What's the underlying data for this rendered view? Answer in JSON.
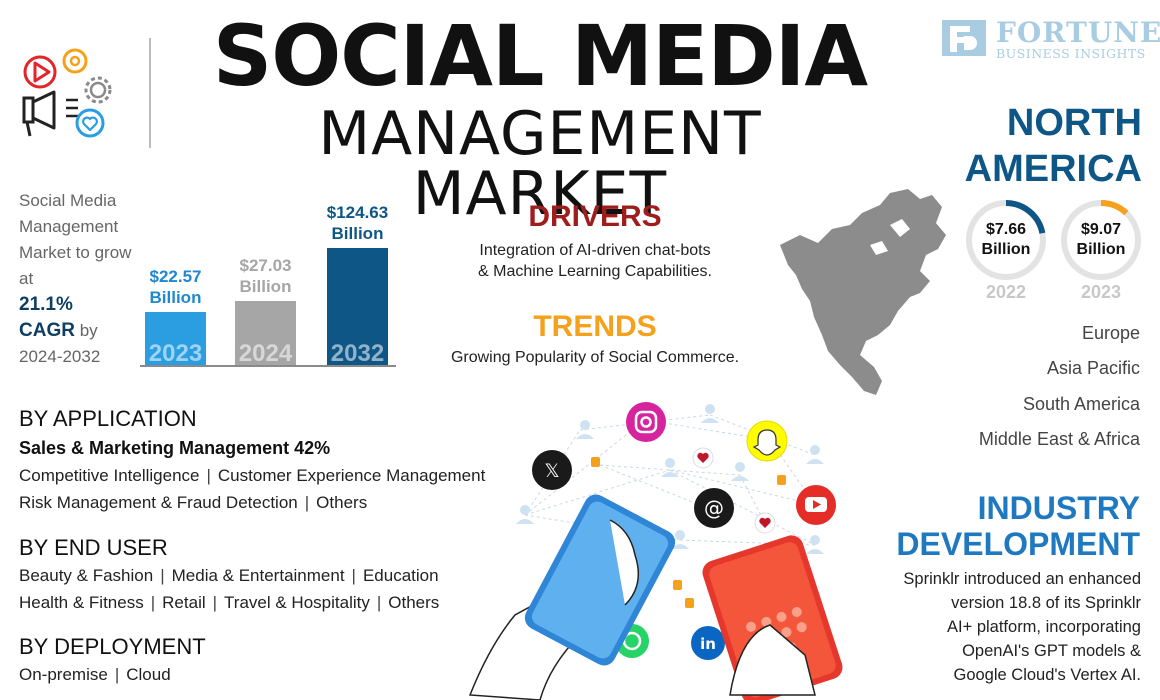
{
  "header": {
    "title_line1": "SOCIAL MEDIA",
    "title_line2": "MANAGEMENT MARKET",
    "logo_line1": "FORTUNE",
    "logo_line2": "BUSINESS INSIGHTS",
    "logo_color": "#a8cde3"
  },
  "intro": {
    "text_before": "Social Media Management Market to grow at",
    "rate": "21.1%",
    "cagr": "CAGR",
    "by": "by",
    "period": "2024-2032"
  },
  "chart_data": {
    "type": "bar",
    "categories": [
      "2023",
      "2024",
      "2032"
    ],
    "values": [
      22.57,
      27.03,
      124.63
    ],
    "value_labels": [
      {
        "amount": "$22.57",
        "unit": "Billion"
      },
      {
        "amount": "$27.03",
        "unit": "Billion"
      },
      {
        "amount": "$124.63",
        "unit": "Billion"
      }
    ],
    "colors": [
      "#2a9ee0",
      "#a6a6a6",
      "#0d5686"
    ],
    "label_colors": [
      "#1e88d0",
      "#a6a6a6",
      "#0d5686"
    ]
  },
  "drivers": {
    "heading": "DRIVERS",
    "text_line1": "Integration of AI-driven chat-bots",
    "text_line2": "& Machine Learning Capabilities.",
    "color": "#9e1d1d"
  },
  "trends": {
    "heading": "TRENDS",
    "text": "Growing Popularity of Social Commerce.",
    "color": "#f5a11b"
  },
  "north_america": {
    "heading_line1": "NORTH",
    "heading_line2": "AMERICA",
    "donuts": [
      {
        "amount": "$7.66",
        "unit": "Billion",
        "year": "2022",
        "fill_fraction": 0.22,
        "color": "#0d5686"
      },
      {
        "amount": "$9.07",
        "unit": "Billion",
        "year": "2023",
        "fill_fraction": 0.12,
        "color": "#f5a11b"
      }
    ]
  },
  "regions": [
    "Europe",
    "Asia Pacific",
    "South America",
    "Middle East & Africa"
  ],
  "industry": {
    "heading_line1": "INDUSTRY",
    "heading_line2": "DEVELOPMENT",
    "lines": [
      "Sprinklr introduced an enhanced",
      "version 18.8 of its Sprinklr",
      "AI+ platform, incorporating",
      "OpenAI's GPT models &",
      "Google Cloud's Vertex AI."
    ]
  },
  "application": {
    "heading": "BY APPLICATION",
    "highlight": "Sales & Marketing Management 42%",
    "row1": [
      "Competitive Intelligence",
      "Customer Experience Management"
    ],
    "row2": [
      "Risk Management & Fraud Detection",
      "Others"
    ]
  },
  "end_user": {
    "heading": "BY END USER",
    "row1": [
      "Beauty & Fashion",
      "Media & Entertainment",
      "Education"
    ],
    "row2": [
      "Health & Fitness",
      "Retail",
      "Travel & Hospitality",
      "Others"
    ]
  },
  "deployment": {
    "heading": "BY DEPLOYMENT",
    "row1": [
      "On-premise",
      "Cloud"
    ]
  },
  "separator": "|"
}
